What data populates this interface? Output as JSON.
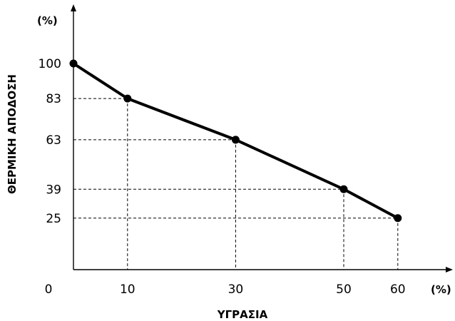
{
  "chart_data": {
    "type": "line",
    "xlabel": "ΥΓΡΑΣΙΑ",
    "ylabel": "ΘΕΡΜΙΚΗ ΑΠΟΔΟΣΗ",
    "x_unit": "(%)",
    "y_unit": "(%)",
    "x_ticks": [
      "0",
      "10",
      "30",
      "50",
      "60"
    ],
    "y_ticks": [
      "100",
      "83",
      "63",
      "39",
      "25"
    ],
    "x": [
      0,
      10,
      30,
      50,
      60
    ],
    "y": [
      100,
      83,
      63,
      39,
      25
    ],
    "xlim": [
      0,
      70
    ],
    "ylim": [
      0,
      103
    ],
    "grid": false,
    "guide_lines": "dashed"
  }
}
